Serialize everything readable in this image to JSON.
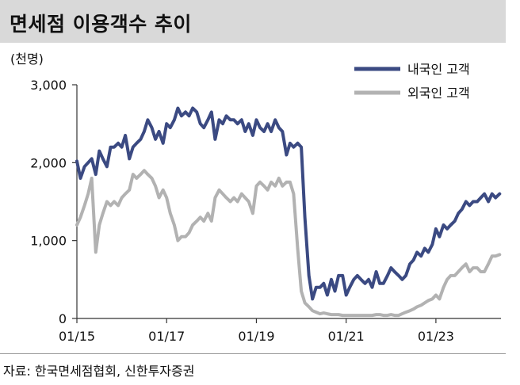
{
  "title": "면세점 이용객수 추이",
  "source": "자료: 한국면세점협회, 신한투자증권",
  "colors": {
    "domestic": "#3b4a82",
    "foreign": "#b2b2b2",
    "title_bg": "#d9d9d9"
  },
  "chart_data": {
    "type": "line",
    "unit_label": "(천명)",
    "ylim": [
      0,
      3000
    ],
    "yticks": [
      0,
      1000,
      2000,
      3000
    ],
    "ytick_labels": [
      "0",
      "1,000",
      "2,000",
      "3,000"
    ],
    "xlim": [
      2015.0,
      2024.45
    ],
    "xticks": [
      2015,
      2017,
      2019,
      2021,
      2023
    ],
    "xtick_labels": [
      "01/15",
      "01/17",
      "01/19",
      "01/21",
      "01/23"
    ],
    "legend_position": "top-right",
    "grid": false,
    "series": [
      {
        "name": "내국인 고객",
        "color": "#3b4a82",
        "points": [
          [
            2015.0,
            2020
          ],
          [
            2015.08,
            1800
          ],
          [
            2015.17,
            1950
          ],
          [
            2015.25,
            2000
          ],
          [
            2015.33,
            2050
          ],
          [
            2015.42,
            1850
          ],
          [
            2015.5,
            2150
          ],
          [
            2015.58,
            2050
          ],
          [
            2015.67,
            1950
          ],
          [
            2015.75,
            2200
          ],
          [
            2015.83,
            2200
          ],
          [
            2015.92,
            2250
          ],
          [
            2016.0,
            2200
          ],
          [
            2016.08,
            2350
          ],
          [
            2016.17,
            2050
          ],
          [
            2016.25,
            2200
          ],
          [
            2016.33,
            2250
          ],
          [
            2016.42,
            2300
          ],
          [
            2016.5,
            2400
          ],
          [
            2016.58,
            2550
          ],
          [
            2016.67,
            2450
          ],
          [
            2016.75,
            2300
          ],
          [
            2016.83,
            2400
          ],
          [
            2016.92,
            2250
          ],
          [
            2017.0,
            2500
          ],
          [
            2017.08,
            2450
          ],
          [
            2017.17,
            2550
          ],
          [
            2017.25,
            2700
          ],
          [
            2017.33,
            2600
          ],
          [
            2017.42,
            2650
          ],
          [
            2017.5,
            2600
          ],
          [
            2017.58,
            2700
          ],
          [
            2017.67,
            2650
          ],
          [
            2017.75,
            2500
          ],
          [
            2017.83,
            2450
          ],
          [
            2017.92,
            2550
          ],
          [
            2018.0,
            2650
          ],
          [
            2018.08,
            2300
          ],
          [
            2018.17,
            2550
          ],
          [
            2018.25,
            2500
          ],
          [
            2018.33,
            2600
          ],
          [
            2018.42,
            2550
          ],
          [
            2018.5,
            2550
          ],
          [
            2018.58,
            2500
          ],
          [
            2018.67,
            2550
          ],
          [
            2018.75,
            2400
          ],
          [
            2018.83,
            2500
          ],
          [
            2018.92,
            2350
          ],
          [
            2019.0,
            2550
          ],
          [
            2019.08,
            2450
          ],
          [
            2019.17,
            2400
          ],
          [
            2019.25,
            2500
          ],
          [
            2019.33,
            2400
          ],
          [
            2019.42,
            2550
          ],
          [
            2019.5,
            2450
          ],
          [
            2019.58,
            2400
          ],
          [
            2019.67,
            2100
          ],
          [
            2019.75,
            2250
          ],
          [
            2019.83,
            2200
          ],
          [
            2019.92,
            2250
          ],
          [
            2020.0,
            2200
          ],
          [
            2020.08,
            1300
          ],
          [
            2020.17,
            550
          ],
          [
            2020.25,
            250
          ],
          [
            2020.33,
            400
          ],
          [
            2020.42,
            400
          ],
          [
            2020.5,
            450
          ],
          [
            2020.58,
            300
          ],
          [
            2020.67,
            500
          ],
          [
            2020.75,
            350
          ],
          [
            2020.83,
            550
          ],
          [
            2020.92,
            550
          ],
          [
            2021.0,
            300
          ],
          [
            2021.08,
            400
          ],
          [
            2021.17,
            500
          ],
          [
            2021.25,
            550
          ],
          [
            2021.33,
            500
          ],
          [
            2021.42,
            450
          ],
          [
            2021.5,
            500
          ],
          [
            2021.58,
            400
          ],
          [
            2021.67,
            600
          ],
          [
            2021.75,
            450
          ],
          [
            2021.83,
            450
          ],
          [
            2021.92,
            550
          ],
          [
            2022.0,
            650
          ],
          [
            2022.08,
            600
          ],
          [
            2022.17,
            550
          ],
          [
            2022.25,
            500
          ],
          [
            2022.33,
            550
          ],
          [
            2022.42,
            700
          ],
          [
            2022.5,
            750
          ],
          [
            2022.58,
            850
          ],
          [
            2022.67,
            800
          ],
          [
            2022.75,
            900
          ],
          [
            2022.83,
            850
          ],
          [
            2022.92,
            950
          ],
          [
            2023.0,
            1150
          ],
          [
            2023.08,
            1050
          ],
          [
            2023.17,
            1200
          ],
          [
            2023.25,
            1150
          ],
          [
            2023.33,
            1200
          ],
          [
            2023.42,
            1250
          ],
          [
            2023.5,
            1350
          ],
          [
            2023.58,
            1400
          ],
          [
            2023.67,
            1500
          ],
          [
            2023.75,
            1450
          ],
          [
            2023.83,
            1500
          ],
          [
            2023.92,
            1500
          ],
          [
            2024.0,
            1550
          ],
          [
            2024.08,
            1600
          ],
          [
            2024.17,
            1500
          ],
          [
            2024.25,
            1600
          ],
          [
            2024.33,
            1550
          ],
          [
            2024.42,
            1600
          ]
        ]
      },
      {
        "name": "외국인 고객",
        "color": "#b2b2b2",
        "points": [
          [
            2015.0,
            1200
          ],
          [
            2015.08,
            1300
          ],
          [
            2015.17,
            1450
          ],
          [
            2015.25,
            1600
          ],
          [
            2015.33,
            1800
          ],
          [
            2015.42,
            850
          ],
          [
            2015.5,
            1200
          ],
          [
            2015.58,
            1350
          ],
          [
            2015.67,
            1500
          ],
          [
            2015.75,
            1450
          ],
          [
            2015.83,
            1500
          ],
          [
            2015.92,
            1450
          ],
          [
            2016.0,
            1550
          ],
          [
            2016.08,
            1600
          ],
          [
            2016.17,
            1650
          ],
          [
            2016.25,
            1850
          ],
          [
            2016.33,
            1800
          ],
          [
            2016.42,
            1850
          ],
          [
            2016.5,
            1900
          ],
          [
            2016.58,
            1850
          ],
          [
            2016.67,
            1800
          ],
          [
            2016.75,
            1700
          ],
          [
            2016.83,
            1550
          ],
          [
            2016.92,
            1650
          ],
          [
            2017.0,
            1550
          ],
          [
            2017.08,
            1350
          ],
          [
            2017.17,
            1200
          ],
          [
            2017.25,
            1000
          ],
          [
            2017.33,
            1050
          ],
          [
            2017.42,
            1050
          ],
          [
            2017.5,
            1100
          ],
          [
            2017.58,
            1200
          ],
          [
            2017.67,
            1250
          ],
          [
            2017.75,
            1300
          ],
          [
            2017.83,
            1250
          ],
          [
            2017.92,
            1350
          ],
          [
            2018.0,
            1250
          ],
          [
            2018.08,
            1550
          ],
          [
            2018.17,
            1650
          ],
          [
            2018.25,
            1600
          ],
          [
            2018.33,
            1550
          ],
          [
            2018.42,
            1500
          ],
          [
            2018.5,
            1550
          ],
          [
            2018.58,
            1500
          ],
          [
            2018.67,
            1600
          ],
          [
            2018.75,
            1550
          ],
          [
            2018.83,
            1500
          ],
          [
            2018.92,
            1350
          ],
          [
            2019.0,
            1700
          ],
          [
            2019.08,
            1750
          ],
          [
            2019.17,
            1700
          ],
          [
            2019.25,
            1650
          ],
          [
            2019.33,
            1750
          ],
          [
            2019.42,
            1700
          ],
          [
            2019.5,
            1800
          ],
          [
            2019.58,
            1700
          ],
          [
            2019.67,
            1750
          ],
          [
            2019.75,
            1750
          ],
          [
            2019.83,
            1600
          ],
          [
            2019.92,
            900
          ],
          [
            2020.0,
            350
          ],
          [
            2020.08,
            200
          ],
          [
            2020.17,
            150
          ],
          [
            2020.25,
            100
          ],
          [
            2020.33,
            80
          ],
          [
            2020.42,
            60
          ],
          [
            2020.5,
            70
          ],
          [
            2020.58,
            60
          ],
          [
            2020.67,
            50
          ],
          [
            2020.75,
            50
          ],
          [
            2020.83,
            50
          ],
          [
            2020.92,
            40
          ],
          [
            2021.0,
            40
          ],
          [
            2021.08,
            40
          ],
          [
            2021.17,
            40
          ],
          [
            2021.25,
            40
          ],
          [
            2021.33,
            40
          ],
          [
            2021.42,
            40
          ],
          [
            2021.5,
            40
          ],
          [
            2021.58,
            40
          ],
          [
            2021.67,
            50
          ],
          [
            2021.75,
            50
          ],
          [
            2021.83,
            40
          ],
          [
            2021.92,
            40
          ],
          [
            2022.0,
            50
          ],
          [
            2022.08,
            40
          ],
          [
            2022.17,
            40
          ],
          [
            2022.25,
            60
          ],
          [
            2022.33,
            80
          ],
          [
            2022.42,
            100
          ],
          [
            2022.5,
            120
          ],
          [
            2022.58,
            150
          ],
          [
            2022.67,
            170
          ],
          [
            2022.75,
            200
          ],
          [
            2022.83,
            230
          ],
          [
            2022.92,
            250
          ],
          [
            2023.0,
            300
          ],
          [
            2023.08,
            250
          ],
          [
            2023.17,
            400
          ],
          [
            2023.25,
            500
          ],
          [
            2023.33,
            550
          ],
          [
            2023.42,
            550
          ],
          [
            2023.5,
            600
          ],
          [
            2023.58,
            650
          ],
          [
            2023.67,
            700
          ],
          [
            2023.75,
            600
          ],
          [
            2023.83,
            650
          ],
          [
            2023.92,
            650
          ],
          [
            2024.0,
            600
          ],
          [
            2024.08,
            600
          ],
          [
            2024.17,
            700
          ],
          [
            2024.25,
            800
          ],
          [
            2024.33,
            800
          ],
          [
            2024.42,
            820
          ]
        ]
      }
    ]
  }
}
